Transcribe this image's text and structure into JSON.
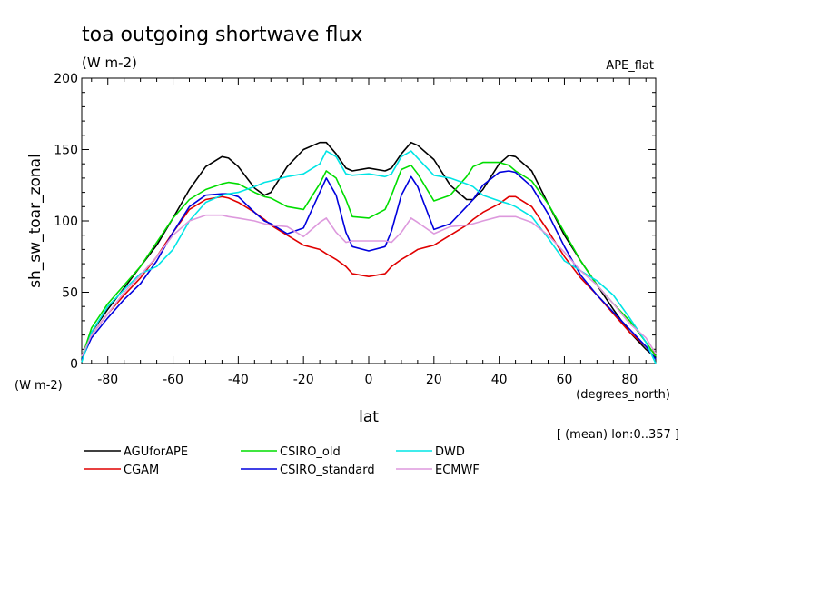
{
  "chart_data": {
    "type": "line",
    "title": "toa outgoing shortwave flux",
    "units": "(W m-2)",
    "model_label": "APE_flat",
    "ylabel": "sh_sw_toar_zonal",
    "yunits": "(W m-2)",
    "xlabel": "lat",
    "xunits": "(degrees_north)",
    "footnote": "[ (mean) lon:0..357 ]",
    "xlim": [
      -88,
      88
    ],
    "ylim": [
      0,
      200
    ],
    "xticks": [
      "-80",
      "-60",
      "-40",
      "-20",
      "0",
      "20",
      "40",
      "60",
      "80"
    ],
    "xtick_values": [
      -80,
      -60,
      -40,
      -20,
      0,
      20,
      40,
      60,
      80
    ],
    "yticks": [
      "0",
      "50",
      "100",
      "150",
      "200"
    ],
    "ytick_values": [
      0,
      50,
      100,
      150,
      200
    ],
    "x": [
      -88,
      -85,
      -80,
      -75,
      -70,
      -65,
      -60,
      -55,
      -50,
      -45,
      -43,
      -40,
      -35,
      -32,
      -30,
      -25,
      -20,
      -15,
      -13,
      -10,
      -7,
      -5,
      0,
      5,
      7,
      10,
      13,
      15,
      20,
      25,
      30,
      32,
      35,
      40,
      43,
      45,
      50,
      55,
      60,
      65,
      70,
      75,
      80,
      85,
      88
    ],
    "series": [
      {
        "name": "AGUforAPE",
        "color": "#000000",
        "values": [
          3,
          22,
          38,
          53,
          68,
          83,
          102,
          122,
          138,
          145,
          144,
          138,
          123,
          118,
          120,
          138,
          150,
          155,
          155,
          147,
          137,
          135,
          137,
          135,
          137,
          147,
          155,
          153,
          143,
          125,
          115,
          115,
          122,
          140,
          146,
          145,
          135,
          112,
          90,
          72,
          55,
          38,
          22,
          10,
          4
        ]
      },
      {
        "name": "CGAM",
        "color": "#e00000",
        "values": [
          5,
          20,
          35,
          48,
          60,
          75,
          92,
          108,
          115,
          117,
          116,
          113,
          106,
          101,
          97,
          90,
          83,
          80,
          77,
          73,
          68,
          63,
          61,
          63,
          68,
          73,
          77,
          80,
          83,
          90,
          97,
          101,
          106,
          112,
          117,
          117,
          110,
          93,
          75,
          60,
          48,
          35,
          22,
          12,
          7
        ]
      },
      {
        "name": "CSIRO_old",
        "color": "#00dd00",
        "values": [
          4,
          25,
          42,
          55,
          68,
          85,
          102,
          115,
          122,
          126,
          127,
          126,
          120,
          117,
          116,
          110,
          108,
          126,
          135,
          130,
          115,
          103,
          102,
          108,
          118,
          136,
          139,
          133,
          114,
          118,
          131,
          138,
          141,
          141,
          139,
          135,
          128,
          112,
          92,
          72,
          55,
          42,
          30,
          15,
          5
        ]
      },
      {
        "name": "CSIRO_standard",
        "color": "#0000dd",
        "values": [
          3,
          18,
          32,
          45,
          56,
          72,
          92,
          110,
          118,
          119,
          119,
          117,
          106,
          100,
          98,
          91,
          95,
          120,
          130,
          118,
          92,
          82,
          79,
          82,
          93,
          118,
          131,
          124,
          94,
          98,
          110,
          115,
          125,
          134,
          135,
          134,
          124,
          105,
          82,
          62,
          48,
          36,
          24,
          12,
          3
        ]
      },
      {
        "name": "DWD",
        "color": "#00e5e5",
        "values": [
          1,
          22,
          40,
          52,
          63,
          68,
          80,
          100,
          113,
          118,
          119,
          120,
          124,
          127,
          128,
          131,
          133,
          140,
          149,
          145,
          133,
          132,
          133,
          131,
          133,
          145,
          149,
          144,
          132,
          130,
          126,
          124,
          118,
          114,
          112,
          110,
          103,
          88,
          72,
          65,
          58,
          48,
          32,
          15,
          0
        ]
      },
      {
        "name": "ECMWF",
        "color": "#dd99dd",
        "values": [
          5,
          20,
          35,
          50,
          62,
          75,
          90,
          100,
          104,
          104,
          103,
          102,
          100,
          98,
          97,
          96,
          89,
          99,
          102,
          92,
          85,
          86,
          86,
          86,
          85,
          92,
          102,
          99,
          91,
          96,
          97,
          98,
          100,
          103,
          103,
          103,
          99,
          90,
          78,
          65,
          55,
          42,
          28,
          18,
          7
        ]
      }
    ]
  }
}
